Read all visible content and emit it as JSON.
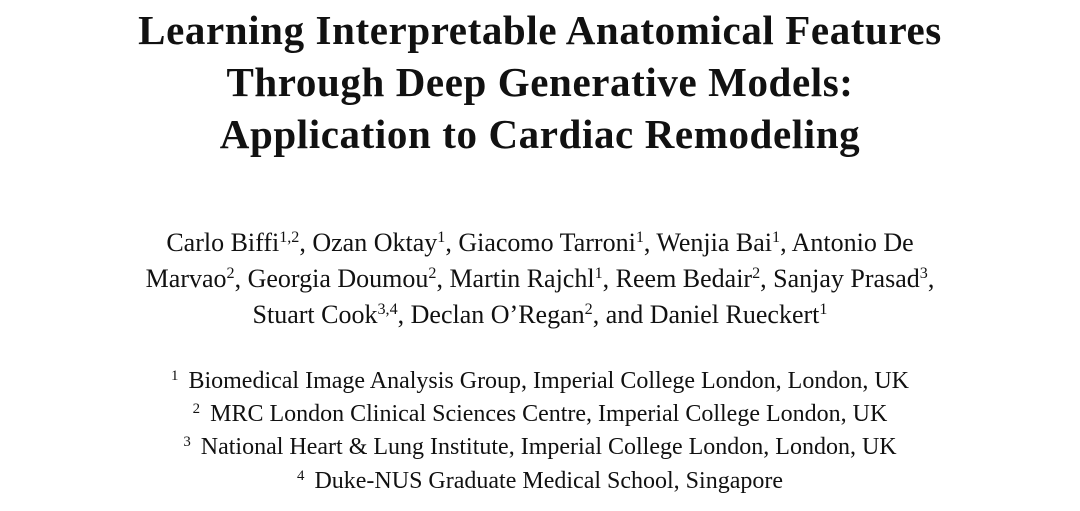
{
  "header": {
    "title_lines": [
      "Learning Interpretable Anatomical Features",
      "Through Deep Generative Models:",
      "Application to Cardiac Remodeling"
    ]
  },
  "authors": {
    "lines": [
      [
        {
          "t": "Carlo Biffi"
        },
        {
          "sup": "1,2"
        },
        {
          "t": ", Ozan Oktay"
        },
        {
          "sup": "1"
        },
        {
          "t": ", Giacomo Tarroni"
        },
        {
          "sup": "1"
        },
        {
          "t": ", Wenjia Bai"
        },
        {
          "sup": "1"
        },
        {
          "t": ", Antonio De"
        }
      ],
      [
        {
          "t": "Marvao"
        },
        {
          "sup": "2"
        },
        {
          "t": ", Georgia Doumou"
        },
        {
          "sup": "2"
        },
        {
          "t": ", Martin Rajchl"
        },
        {
          "sup": "1"
        },
        {
          "t": ", Reem Bedair"
        },
        {
          "sup": "2"
        },
        {
          "t": ", Sanjay Prasad"
        },
        {
          "sup": "3"
        },
        {
          "t": ","
        }
      ],
      [
        {
          "t": "Stuart Cook"
        },
        {
          "sup": "3,4"
        },
        {
          "t": ", Declan O’Regan"
        },
        {
          "sup": "2"
        },
        {
          "t": ", and Daniel Rueckert"
        },
        {
          "sup": "1"
        }
      ]
    ]
  },
  "affiliations": [
    {
      "mark": "1",
      "text": "Biomedical Image Analysis Group, Imperial College London, London, UK"
    },
    {
      "mark": "2",
      "text": "MRC London Clinical Sciences Centre, Imperial College London, UK"
    },
    {
      "mark": "3",
      "text": "National Heart & Lung Institute, Imperial College London, London, UK"
    },
    {
      "mark": "4",
      "text": "Duke-NUS Graduate Medical School, Singapore"
    }
  ]
}
